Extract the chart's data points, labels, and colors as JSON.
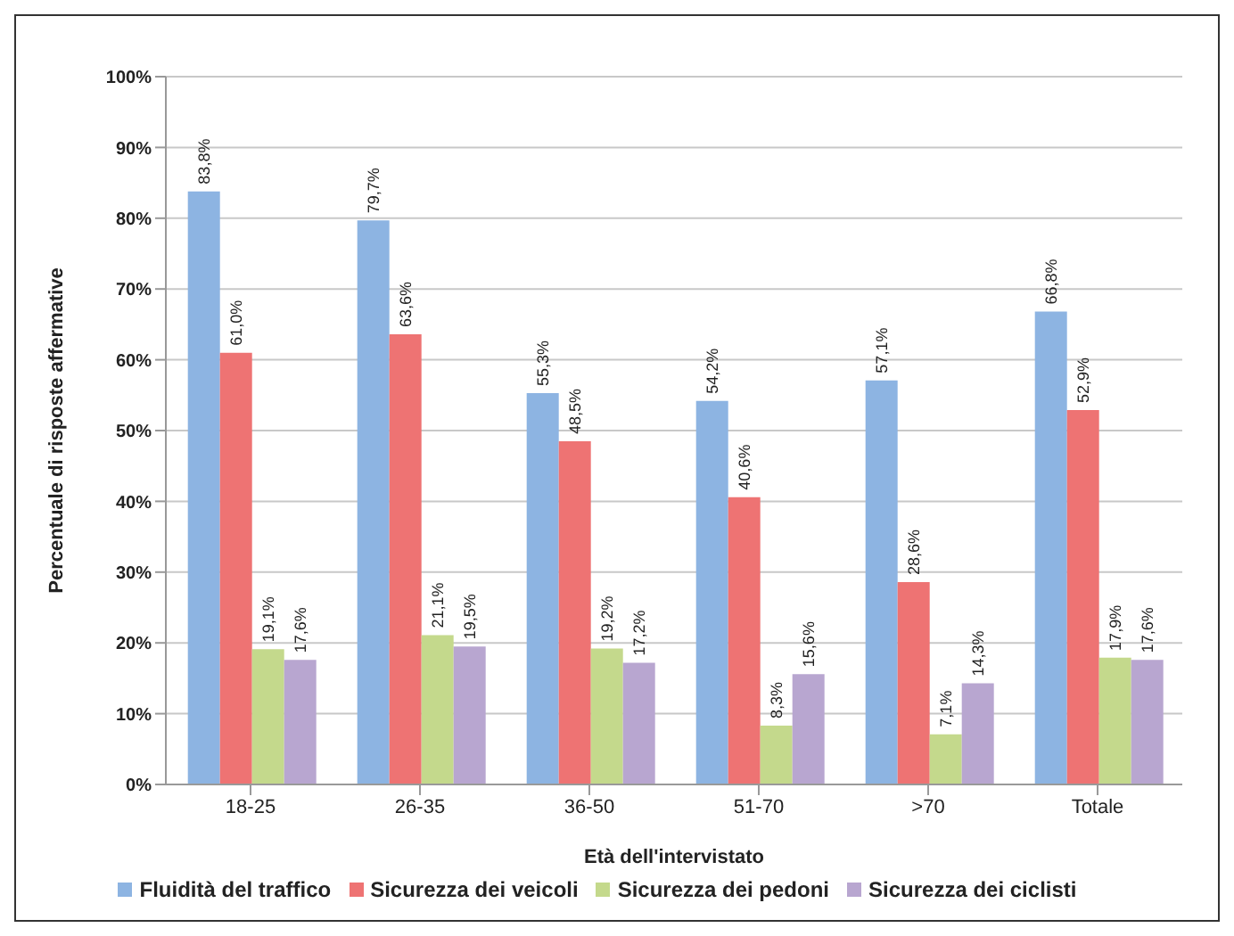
{
  "chart_data": {
    "type": "bar",
    "xlabel": "Età dell'intervistato",
    "ylabel": "Percentuale di risposte affermative",
    "categories": [
      "18-25",
      "26-35",
      "36-50",
      "51-70",
      ">70",
      "Totale"
    ],
    "series": [
      {
        "name": "Fluidità del traffico",
        "color": "#8db4e2",
        "values": [
          83.8,
          79.7,
          55.3,
          54.2,
          57.1,
          66.8
        ],
        "value_labels": [
          "83,8%",
          "79,7%",
          "55,3%",
          "54,2%",
          "57,1%",
          "66,8%"
        ]
      },
      {
        "name": "Sicurezza dei veicoli",
        "color": "#ee7373",
        "values": [
          61.0,
          63.6,
          48.5,
          40.6,
          28.6,
          52.9
        ],
        "value_labels": [
          "61,0%",
          "63,6%",
          "48,5%",
          "40,6%",
          "28,6%",
          "52,9%"
        ]
      },
      {
        "name": "Sicurezza dei pedoni",
        "color": "#c4d98c",
        "values": [
          19.1,
          21.1,
          19.2,
          8.3,
          7.1,
          17.9
        ],
        "value_labels": [
          "19,1%",
          "21,1%",
          "19,2%",
          "8,3%",
          "7,1%",
          "17,9%"
        ]
      },
      {
        "name": "Sicurezza dei ciclisti",
        "color": "#b8a6d0",
        "values": [
          17.6,
          19.5,
          17.2,
          15.6,
          14.3,
          17.6
        ],
        "value_labels": [
          "17,6%",
          "19,5%",
          "17,2%",
          "15,6%",
          "14,3%",
          "17,6%"
        ]
      }
    ],
    "ylim": [
      0,
      100
    ],
    "yticks": [
      {
        "value": 0,
        "label": "0%"
      },
      {
        "value": 10,
        "label": "10%"
      },
      {
        "value": 20,
        "label": "20%"
      },
      {
        "value": 30,
        "label": "30%"
      },
      {
        "value": 40,
        "label": "40%"
      },
      {
        "value": 50,
        "label": "50%"
      },
      {
        "value": 60,
        "label": "60%"
      },
      {
        "value": 70,
        "label": "70%"
      },
      {
        "value": 80,
        "label": "80%"
      },
      {
        "value": 90,
        "label": "90%"
      },
      {
        "value": 100,
        "label": "100%"
      }
    ],
    "grid": "y",
    "legend": "bottom"
  }
}
